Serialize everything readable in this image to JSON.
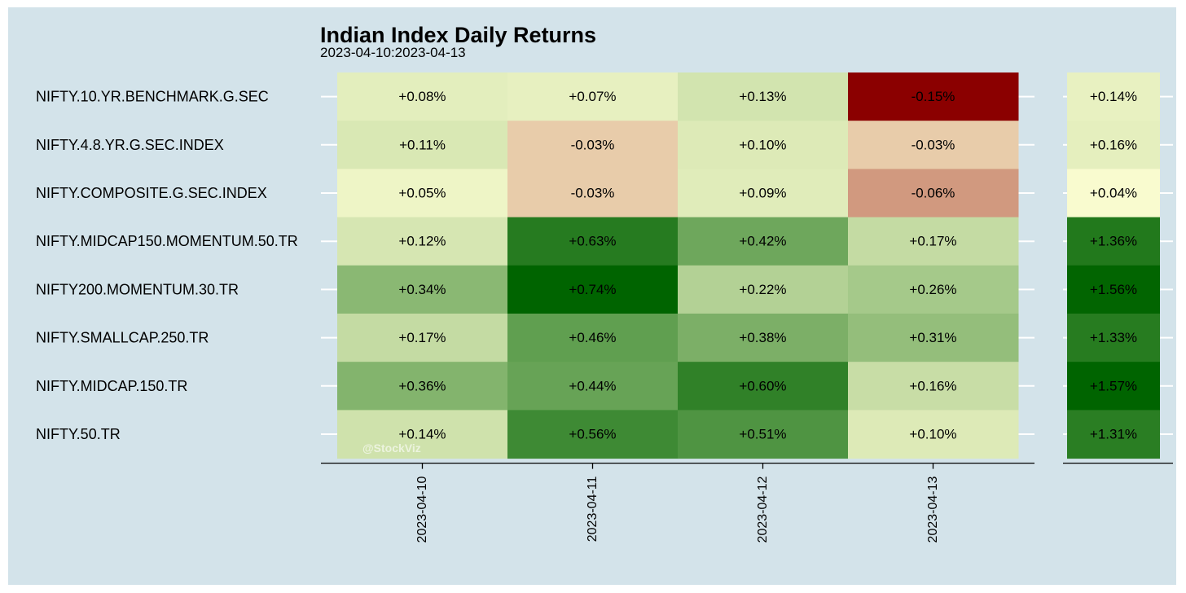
{
  "chart_data": {
    "type": "heatmap",
    "title": "Indian Index Daily Returns",
    "subtitle": "2023-04-10:2023-04-13",
    "x_categories": [
      "2023-04-10",
      "2023-04-11",
      "2023-04-12",
      "2023-04-13"
    ],
    "rows": [
      {
        "name": "NIFTY.10.YR.BENCHMARK.G.SEC",
        "daily": [
          "+0.08%",
          "+0.07%",
          "+0.13%",
          "-0.15%"
        ],
        "total": "+0.14%"
      },
      {
        "name": "NIFTY.4.8.YR.G.SEC.INDEX",
        "daily": [
          "+0.11%",
          "-0.03%",
          "+0.10%",
          "-0.03%"
        ],
        "total": "+0.16%"
      },
      {
        "name": "NIFTY.COMPOSITE.G.SEC.INDEX",
        "daily": [
          "+0.05%",
          "-0.03%",
          "+0.09%",
          "-0.06%"
        ],
        "total": "+0.04%"
      },
      {
        "name": "NIFTY.MIDCAP150.MOMENTUM.50.TR",
        "daily": [
          "+0.12%",
          "+0.63%",
          "+0.42%",
          "+0.17%"
        ],
        "total": "+1.36%"
      },
      {
        "name": "NIFTY200.MOMENTUM.30.TR",
        "daily": [
          "+0.34%",
          "+0.74%",
          "+0.22%",
          "+0.26%"
        ],
        "total": "+1.56%"
      },
      {
        "name": "NIFTY.SMALLCAP.250.TR",
        "daily": [
          "+0.17%",
          "+0.46%",
          "+0.38%",
          "+0.31%"
        ],
        "total": "+1.33%"
      },
      {
        "name": "NIFTY.MIDCAP.150.TR",
        "daily": [
          "+0.36%",
          "+0.44%",
          "+0.60%",
          "+0.16%"
        ],
        "total": "+1.57%"
      },
      {
        "name": "NIFTY.50.TR",
        "daily": [
          "+0.14%",
          "+0.56%",
          "+0.51%",
          "+0.10%"
        ],
        "total": "+1.31%"
      }
    ],
    "color_scale": {
      "negative": "#8b0000",
      "zero": "#ffffd4",
      "positive": "#006400"
    },
    "watermark": "@StockViz",
    "background": "#d3e3ea"
  }
}
